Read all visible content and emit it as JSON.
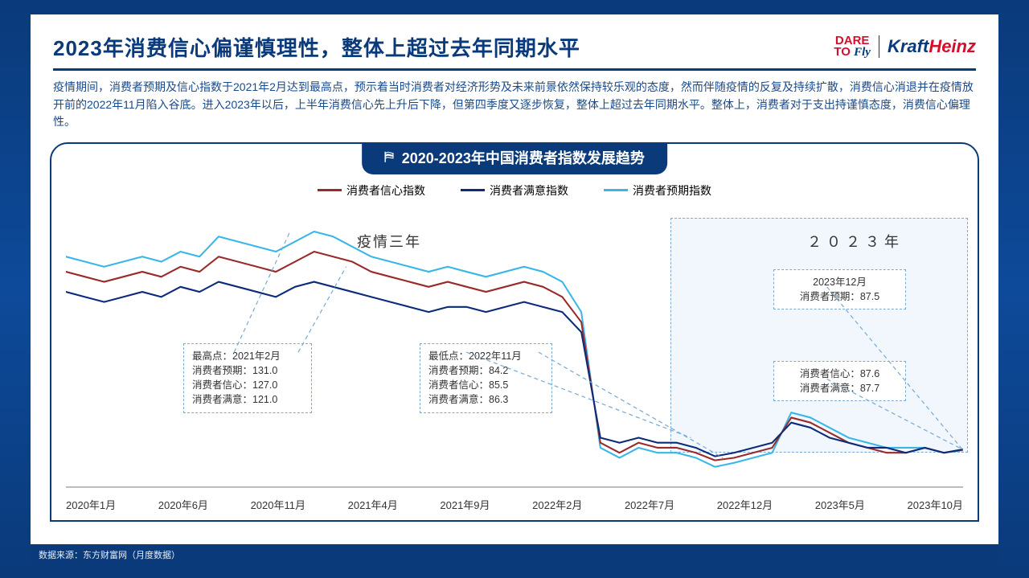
{
  "colors": {
    "brand_navy": "#0a3a7a",
    "brand_red": "#d40f2e",
    "title_text": "#0a3a7a",
    "body_text": "#1a4a8a",
    "rule": "#0a3a7a",
    "axis_text": "#333333",
    "callout_border": "#7aaad4",
    "highlight_fill": "rgba(200,225,245,0.25)",
    "series_confidence": "#9a2a2a",
    "series_satisfaction": "#0a2a7a",
    "series_expectation": "#39b6e8",
    "x_axis_line": "#888888"
  },
  "logos": {
    "dare_line1": "DARE",
    "dare_line2": "TO",
    "dare_line3": "Fly",
    "kh_part1": "Kraft",
    "kh_part2": "Heinz"
  },
  "title": "2023年消费信心偏谨慎理性，整体上超过去年同期水平",
  "body": "疫情期间，消费者预期及信心指数于2021年2月达到最高点，预示着当时消费者对经济形势及未来前景依然保持较乐观的态度，然而伴随疫情的反复及持续扩散，消费信心消退并在疫情放开前的2022年11月陷入谷底。进入2023年以后，上半年消费信心先上升后下降，但第四季度又逐步恢复，整体上超过去年同期水平。整体上，消费者对于支出持谨慎态度，消费信心偏理性。",
  "chart": {
    "type": "line",
    "banner_title": "2020-2023年中国消费者指数发展趋势",
    "legend": {
      "confidence": "消费者信心指数",
      "satisfaction": "消费者满意指数",
      "expectation": "消费者预期指数"
    },
    "phase_labels": {
      "p1": "疫情三年",
      "p2": "２０２３年"
    },
    "x_ticks": [
      "2020年1月",
      "2020年6月",
      "2020年11月",
      "2021年4月",
      "2021年9月",
      "2022年2月",
      "2022年7月",
      "2022年12月",
      "2023年5月",
      "2023年10月"
    ],
    "x_domain_months": 48,
    "y_domain": [
      80,
      135
    ],
    "highlight_region_months": [
      36,
      48
    ],
    "series": {
      "confidence": [
        123,
        122,
        121,
        122,
        123,
        122,
        124,
        123,
        126,
        125,
        124,
        123,
        125,
        127,
        126,
        125,
        123,
        122,
        121,
        120,
        121,
        120,
        119,
        120,
        121,
        120,
        118,
        113,
        89,
        87,
        89,
        88,
        88,
        87,
        85.5,
        86,
        87,
        88,
        94,
        93,
        91,
        89,
        88,
        87,
        87,
        88,
        87,
        87.6
      ],
      "satisfaction": [
        119,
        118,
        117,
        118,
        119,
        118,
        120,
        119,
        121,
        120,
        119,
        118,
        120,
        121,
        120,
        119,
        118,
        117,
        116,
        115,
        116,
        116,
        115,
        116,
        117,
        116,
        115,
        111,
        90,
        89,
        90,
        89,
        89,
        88,
        86.3,
        87,
        88,
        89,
        93,
        92,
        90,
        89,
        88,
        88,
        87,
        88,
        87,
        87.7
      ],
      "expectation": [
        126,
        125,
        124,
        125,
        126,
        125,
        127,
        126,
        130,
        129,
        128,
        127,
        129,
        131,
        130,
        128,
        126,
        125,
        124,
        123,
        124,
        123,
        122,
        123,
        124,
        123,
        121,
        115,
        88,
        86,
        88,
        87,
        87,
        86,
        84.2,
        85,
        86,
        87,
        95,
        94,
        92,
        90,
        89,
        88,
        88,
        88,
        87,
        87.5
      ]
    },
    "line_width": 2.0,
    "callouts": {
      "high": {
        "lines": [
          "最高点：2021年2月",
          "消费者预期：131.0",
          "消费者信心：127.0",
          "消费者满意：121.0"
        ],
        "anchor_month": 13
      },
      "low": {
        "lines": [
          "最低点：2022年11月",
          "消费者预期：84.2",
          "消费者信心：85.5",
          "消费者满意：86.3"
        ],
        "anchor_month": 34
      },
      "dec23_top": {
        "lines": [
          "2023年12月",
          "消费者预期：87.5"
        ],
        "anchor_month": 47
      },
      "dec23_bottom": {
        "lines": [
          "消费者信心：87.6",
          "消费者满意：87.7"
        ],
        "anchor_month": 47
      }
    }
  },
  "footer": "数据来源：东方财富网（月度数据）"
}
